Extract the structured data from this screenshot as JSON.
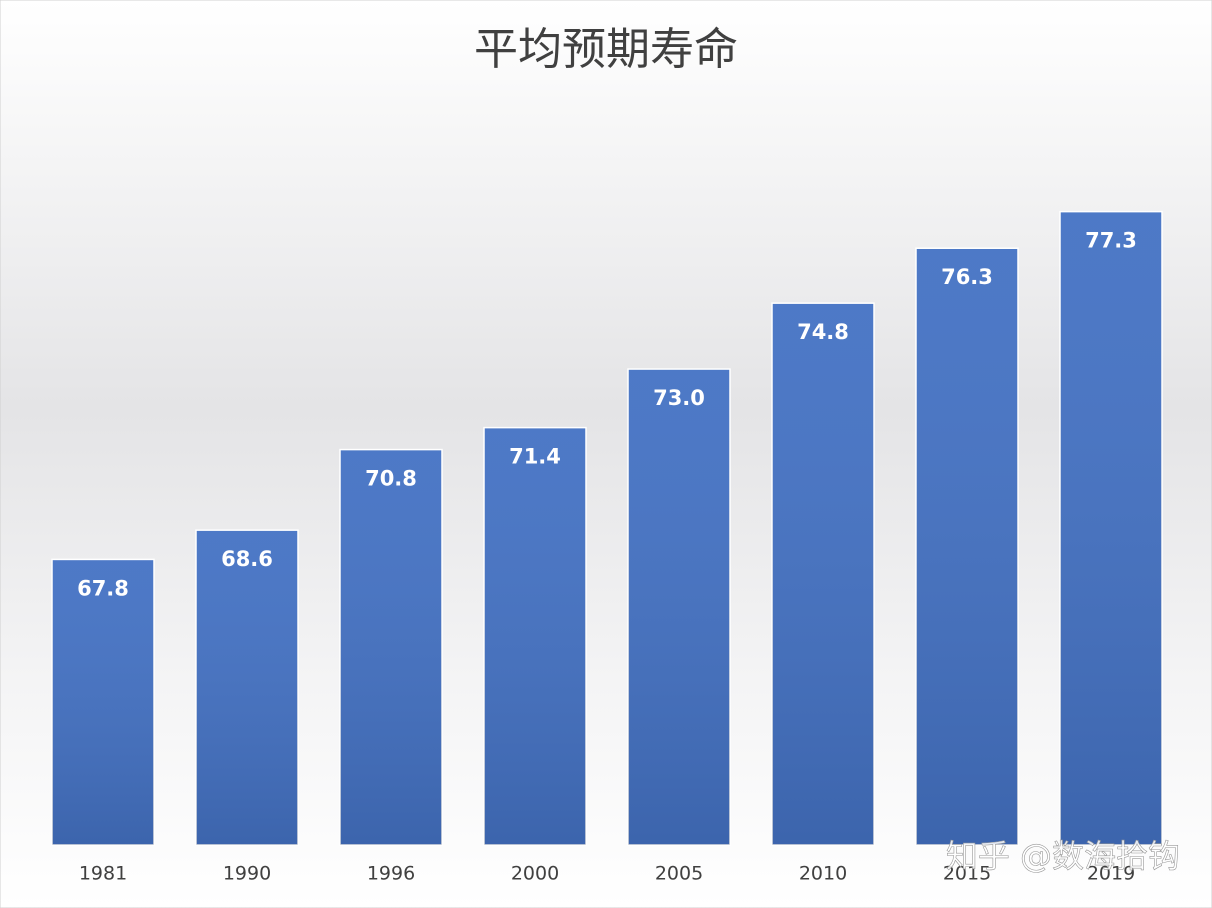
{
  "chart_data": {
    "type": "bar",
    "title": "平均预期寿命",
    "categories": [
      "1981",
      "1990",
      "1996",
      "2000",
      "2005",
      "2010",
      "2015",
      "2019"
    ],
    "values": [
      67.8,
      68.6,
      70.8,
      71.4,
      73.0,
      74.8,
      76.3,
      77.3
    ],
    "value_labels": [
      "67.8",
      "68.6",
      "70.8",
      "71.4",
      "73.0",
      "74.8",
      "76.3",
      "77.3"
    ],
    "color": "#4472c4",
    "ylim": [
      60,
      78
    ]
  },
  "watermark": "知乎 @数海拾钩"
}
